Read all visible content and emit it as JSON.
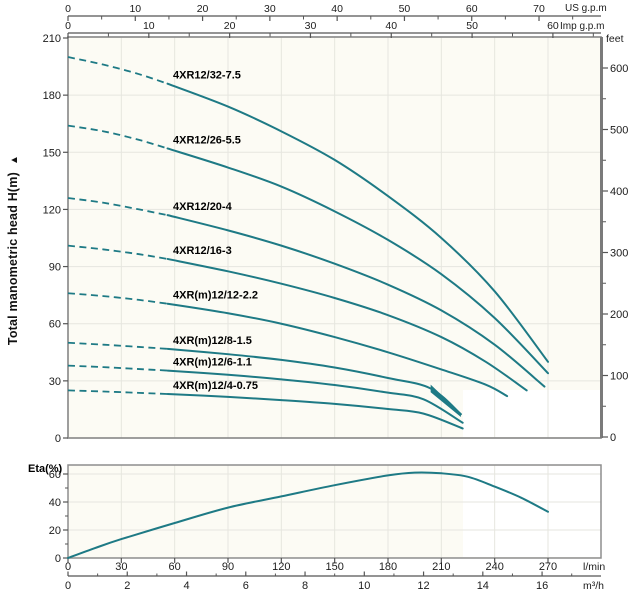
{
  "colors": {
    "curve": "#1e7a85",
    "grid": "#e6e6df",
    "border": "#8d8d8d",
    "border_dark": "#7a7a7a",
    "plot_bg": "#fcfbf4",
    "patch": "#ffffff",
    "text": "#1c1c1c"
  },
  "y_axis_title": "Total manometric head H(m)",
  "y_axis_arrow": "▲",
  "chart_data": [
    {
      "type": "line",
      "id": "head-capacity",
      "ylabel": "Total manometric head H(m)",
      "ylim": [
        0,
        210
      ],
      "y_ticks_m": [
        0,
        30,
        60,
        90,
        120,
        150,
        180,
        210
      ],
      "right_axis": {
        "label": "feet",
        "ticks": [
          0,
          100,
          200,
          300,
          400,
          500,
          600
        ]
      },
      "top_axes": [
        {
          "label": "US g.p.m",
          "ticks": [
            0,
            10,
            20,
            30,
            40,
            50,
            60,
            70
          ]
        },
        {
          "label": "Imp g.p.m",
          "ticks": [
            0,
            10,
            20,
            30,
            40,
            50,
            60
          ]
        }
      ],
      "x_unit": "l/min",
      "xlim": [
        0,
        300
      ],
      "series": [
        {
          "name": "4XR12/32-7.5",
          "dashed": [
            [
              0,
              200
            ],
            [
              20,
              196
            ],
            [
              40,
              191
            ],
            [
              56,
              186
            ]
          ],
          "solid": [
            [
              56,
              186
            ],
            [
              90,
              174
            ],
            [
              120,
              161
            ],
            [
              150,
              146
            ],
            [
              180,
              127
            ],
            [
              210,
              105
            ],
            [
              240,
              77
            ],
            [
              270,
              40
            ]
          ]
        },
        {
          "name": "4XR12/26-5.5",
          "dashed": [
            [
              0,
              164
            ],
            [
              20,
              161
            ],
            [
              40,
              156.5
            ],
            [
              56,
              152
            ]
          ],
          "solid": [
            [
              56,
              152
            ],
            [
              90,
              142
            ],
            [
              120,
              132
            ],
            [
              150,
              119
            ],
            [
              180,
              104
            ],
            [
              210,
              86
            ],
            [
              240,
              63
            ],
            [
              270,
              34
            ]
          ]
        },
        {
          "name": "4XR12/20-4",
          "dashed": [
            [
              0,
              126
            ],
            [
              20,
              123.5
            ],
            [
              40,
              120
            ],
            [
              56,
              117
            ]
          ],
          "solid": [
            [
              56,
              117
            ],
            [
              90,
              109
            ],
            [
              120,
              101
            ],
            [
              150,
              91.5
            ],
            [
              180,
              80.5
            ],
            [
              210,
              67
            ],
            [
              240,
              49
            ],
            [
              268,
              27
            ]
          ]
        },
        {
          "name": "4XR12/16-3",
          "dashed": [
            [
              0,
              101
            ],
            [
              20,
              99
            ],
            [
              40,
              96.5
            ],
            [
              56,
              94
            ]
          ],
          "solid": [
            [
              56,
              94
            ],
            [
              90,
              87.5
            ],
            [
              120,
              81
            ],
            [
              150,
              73.5
            ],
            [
              180,
              64.5
            ],
            [
              210,
              53
            ],
            [
              235,
              40
            ],
            [
              258,
              25
            ]
          ]
        },
        {
          "name": "4XR(m)12/12-2.2",
          "dashed": [
            [
              0,
              76
            ],
            [
              20,
              74.5
            ],
            [
              40,
              72.5
            ],
            [
              56,
              70.5
            ]
          ],
          "solid": [
            [
              56,
              70.5
            ],
            [
              90,
              65.5
            ],
            [
              120,
              60
            ],
            [
              150,
              53
            ],
            [
              180,
              45
            ],
            [
              210,
              36
            ],
            [
              235,
              28
            ],
            [
              247,
              22
            ]
          ]
        },
        {
          "name": "4XR(m)12/8-1.5",
          "dashed": [
            [
              0,
              50
            ],
            [
              20,
              49
            ],
            [
              40,
              47.8
            ],
            [
              56,
              46.8
            ]
          ],
          "solid": [
            [
              56,
              46.8
            ],
            [
              90,
              44
            ],
            [
              120,
              41
            ],
            [
              150,
              37
            ],
            [
              180,
              31.5
            ],
            [
              204,
              26
            ],
            [
              221,
              12.5
            ]
          ]
        },
        {
          "name": "4XR(m)12/6-1.1",
          "dashed": [
            [
              0,
              38
            ],
            [
              20,
              37.2
            ],
            [
              40,
              36.2
            ],
            [
              56,
              35.4
            ]
          ],
          "solid": [
            [
              56,
              35.4
            ],
            [
              90,
              33.2
            ],
            [
              120,
              30.8
            ],
            [
              150,
              27.8
            ],
            [
              180,
              23.8
            ],
            [
              200,
              20.3
            ],
            [
              222,
              8
            ]
          ]
        },
        {
          "name": "4XR(m)12/4-0.75",
          "dashed": [
            [
              0,
              25
            ],
            [
              20,
              24.4
            ],
            [
              40,
              23.7
            ],
            [
              56,
              23.1
            ]
          ],
          "solid": [
            [
              56,
              23.1
            ],
            [
              90,
              21.6
            ],
            [
              120,
              19.9
            ],
            [
              150,
              17.9
            ],
            [
              180,
              15.2
            ],
            [
              200,
              12.8
            ],
            [
              222,
              5
            ]
          ]
        }
      ],
      "wedge": [
        [
          204,
          28
        ],
        [
          221,
          13
        ],
        [
          221,
          11
        ],
        [
          204,
          24
        ]
      ]
    },
    {
      "type": "line",
      "id": "efficiency",
      "ylabel": "Eta(%)",
      "ylim": [
        0,
        65
      ],
      "y_ticks": [
        0,
        20,
        40,
        60
      ],
      "x_ticks_lmin": [
        0,
        30,
        60,
        90,
        120,
        150,
        180,
        210,
        240,
        270
      ],
      "x_unit_lmin": "l/min",
      "x_ticks_m3h": [
        0,
        2,
        4,
        6,
        8,
        10,
        12,
        14,
        16
      ],
      "x_unit_m3h": "m³/h",
      "points": [
        [
          0,
          0
        ],
        [
          15,
          7
        ],
        [
          30,
          13.5
        ],
        [
          60,
          25
        ],
        [
          90,
          36
        ],
        [
          120,
          44
        ],
        [
          150,
          52
        ],
        [
          180,
          59
        ],
        [
          195,
          61
        ],
        [
          210,
          60.5
        ],
        [
          225,
          58
        ],
        [
          240,
          51
        ],
        [
          255,
          43
        ],
        [
          270,
          33
        ]
      ]
    }
  ]
}
